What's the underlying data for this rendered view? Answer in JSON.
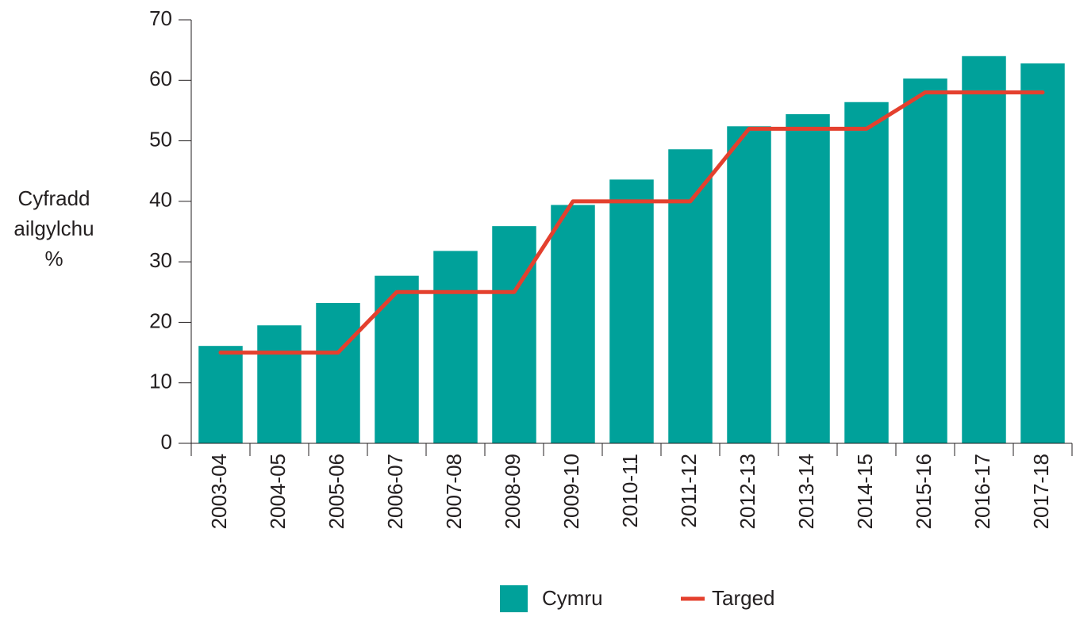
{
  "chart_data": {
    "type": "bar",
    "ylabel": [
      "Cyfradd",
      "ailgylchu",
      "%"
    ],
    "categories": [
      "2003-04",
      "2004-05",
      "2005-06",
      "2006-07",
      "2007-08",
      "2008-09",
      "2009-10",
      "2010-11",
      "2011-12",
      "2012-13",
      "2013-14",
      "2014-15",
      "2015-16",
      "2016-17",
      "2017-18"
    ],
    "series": [
      {
        "name": "Cymru",
        "type": "bar",
        "color": "#00a19a",
        "values": [
          16.1,
          19.5,
          23.2,
          27.7,
          31.8,
          35.9,
          39.4,
          43.6,
          48.6,
          52.4,
          54.4,
          56.4,
          60.3,
          64.0,
          62.8
        ]
      },
      {
        "name": "Targed",
        "type": "line",
        "color": "#e4402e",
        "values": [
          15,
          15,
          15,
          25,
          25,
          25,
          40,
          40,
          40,
          52,
          52,
          52,
          58,
          58,
          58
        ]
      }
    ],
    "ylim": [
      0,
      70
    ],
    "yticks": [
      0,
      10,
      20,
      30,
      40,
      50,
      60,
      70
    ],
    "grid": false,
    "legend": "bottom"
  }
}
